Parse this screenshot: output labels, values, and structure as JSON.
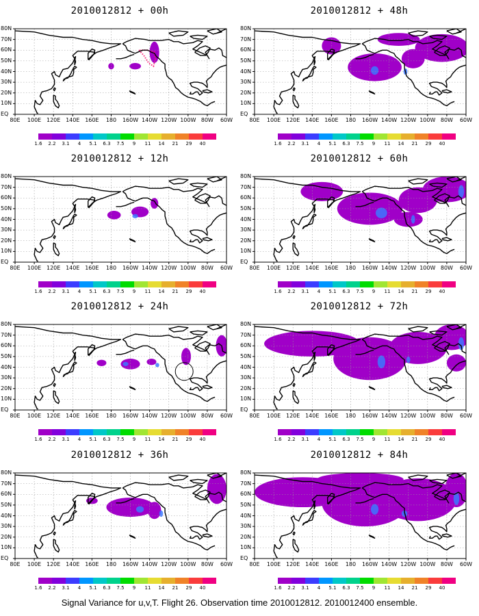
{
  "panels": [
    {
      "title": "2010012812 + 00h",
      "col": 0,
      "row": 0,
      "level": 0
    },
    {
      "title": "2010012812 + 48h",
      "col": 1,
      "row": 0,
      "level": 4
    },
    {
      "title": "2010012812 + 12h",
      "col": 0,
      "row": 1,
      "level": 1
    },
    {
      "title": "2010012812 + 60h",
      "col": 1,
      "row": 1,
      "level": 5
    },
    {
      "title": "2010012812 + 24h",
      "col": 0,
      "row": 2,
      "level": 2
    },
    {
      "title": "2010012812 + 72h",
      "col": 1,
      "row": 2,
      "level": 6
    },
    {
      "title": "2010012812 + 36h",
      "col": 0,
      "row": 3,
      "level": 3
    },
    {
      "title": "2010012812 + 84h",
      "col": 1,
      "row": 3,
      "level": 7
    }
  ],
  "lat_labels": [
    "80N",
    "70N",
    "60N",
    "50N",
    "40N",
    "30N",
    "20N",
    "10N",
    "EQ"
  ],
  "lon_labels": [
    "80E",
    "100E",
    "120E",
    "140E",
    "160E",
    "180",
    "160W",
    "140W",
    "120W",
    "100W",
    "80W",
    "60W"
  ],
  "colorbar": {
    "labels": [
      "1.6",
      "2.2",
      "3.1",
      "4",
      "5.1",
      "6.3",
      "7.5",
      "9",
      "11",
      "14",
      "21",
      "29",
      "40"
    ],
    "colors": [
      "#a000c8",
      "#8200dc",
      "#3c3cff",
      "#0096ff",
      "#00c8c8",
      "#00d28c",
      "#00dc00",
      "#a0e632",
      "#e6dc32",
      "#e6af2d",
      "#f08228",
      "#fa3c3c",
      "#f00082"
    ]
  },
  "caption": "Signal Variance for u,v,T. Flight 26. Observation time 2010012812. 2010012400 ensemble."
}
